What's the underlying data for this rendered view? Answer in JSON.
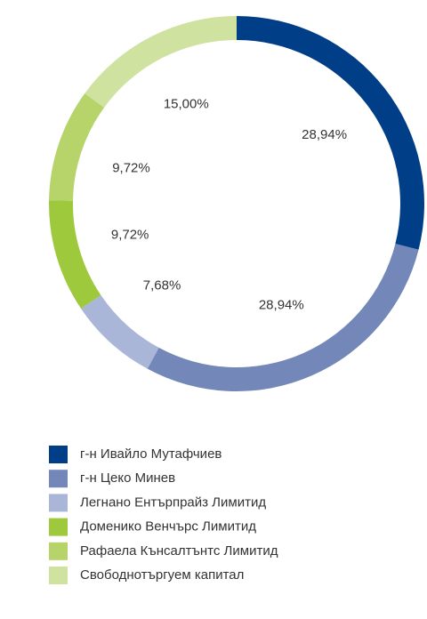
{
  "chart_data": {
    "type": "pie",
    "categories": [
      "г-н Ивайло Мутафчиев",
      "г-н Цеко Минев",
      "Легнано Ентърпрайз Лимитид",
      "Доменико Венчърс Лимитид",
      "Рафаела Кънсалтънтс Лимитид",
      "Свободнотъргуем капитал"
    ],
    "values": [
      28.94,
      28.94,
      7.68,
      9.72,
      9.72,
      15.0
    ],
    "value_labels": [
      "28,94%",
      "28,94%",
      "7,68%",
      "9,72%",
      "9,72%",
      "15,00%"
    ],
    "colors": [
      "#003f87",
      "#7388b8",
      "#aab6d8",
      "#9fc93c",
      "#b6d46a",
      "#cfe2a0"
    ],
    "legend": "bottom"
  }
}
